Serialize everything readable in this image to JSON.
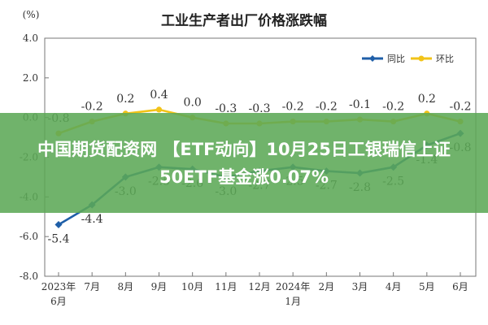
{
  "chart_data": {
    "type": "line",
    "title": "工业生产者出厂价格涨跌幅",
    "ylabel": "(%)",
    "ylim": [
      -8.0,
      4.0
    ],
    "yticks": [
      "4.0",
      "2.0",
      "0.0",
      "-2.0",
      "-4.0",
      "-6.0",
      "-8.0"
    ],
    "grid": false,
    "legend": "top-right",
    "categories": [
      [
        "2023年",
        "6月"
      ],
      [
        "7月"
      ],
      [
        "8月"
      ],
      [
        "9月"
      ],
      [
        "10月"
      ],
      [
        "11月"
      ],
      [
        "12月"
      ],
      [
        "2024年",
        "1月"
      ],
      [
        "2月"
      ],
      [
        "3月"
      ],
      [
        "4月"
      ],
      [
        "5月"
      ],
      [
        "6月"
      ]
    ],
    "series": [
      {
        "name": "同比",
        "color": "#1f5fa8",
        "marker": "diamond",
        "values": [
          -5.4,
          -4.4,
          -3.0,
          -2.5,
          -2.6,
          -3.0,
          -2.7,
          -2.5,
          -2.7,
          -2.8,
          -2.5,
          -1.4,
          -0.8
        ],
        "labels": [
          "-5.4",
          "-4.4",
          "-3.0",
          "-2.5",
          "-2.6",
          "-3.0",
          "-2.7",
          "-2.5",
          "-2.7",
          "-2.8",
          "-2.5",
          "-1.4",
          "-0.8"
        ]
      },
      {
        "name": "环比",
        "color": "#f2c318",
        "marker": "circle",
        "values": [
          -0.8,
          -0.2,
          0.2,
          0.4,
          0.0,
          -0.3,
          -0.3,
          -0.2,
          -0.2,
          -0.1,
          -0.2,
          0.2,
          -0.2
        ],
        "labels": [
          "-0.8",
          "-0.2",
          "0.2",
          "0.4",
          "0.0",
          "-0.3",
          "-0.3",
          "-0.2",
          "-0.2",
          "-0.1",
          "-0.2",
          "0.2",
          "-0.2"
        ]
      }
    ]
  },
  "overlay": {
    "line1": "中国期货配资网 【ETF动向】10月25日工银瑞信上证",
    "line2": "50ETF基金涨0.07%"
  }
}
